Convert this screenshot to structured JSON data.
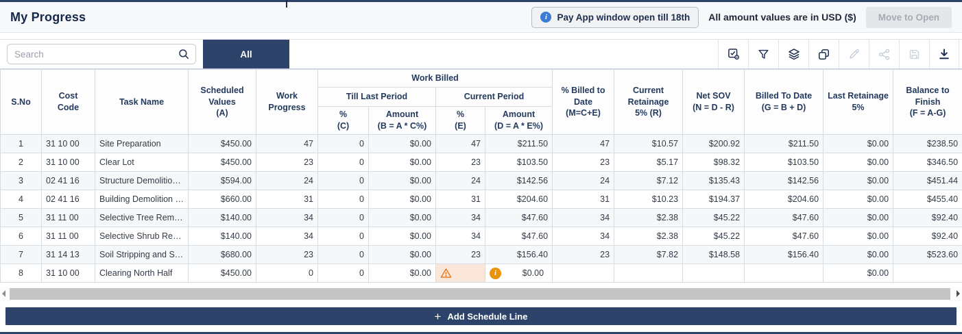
{
  "page": {
    "title": "My Progress",
    "pay_app_notice": "Pay App window open till 18th",
    "currency_note": "All amount values are in USD ($)",
    "move_to_open_label": "Move to Open"
  },
  "toolbar": {
    "search_placeholder": "Search",
    "tab_all_label": "All",
    "icons": [
      {
        "name": "select-view-icon",
        "enabled": true
      },
      {
        "name": "filter-icon",
        "enabled": true
      },
      {
        "name": "layers-icon",
        "enabled": true
      },
      {
        "name": "copy-icon",
        "enabled": true
      },
      {
        "name": "edit-icon",
        "enabled": false
      },
      {
        "name": "share-icon",
        "enabled": false
      },
      {
        "name": "save-icon",
        "enabled": false
      },
      {
        "name": "download-icon",
        "enabled": true
      }
    ],
    "accent_color": "#2e4369",
    "disabled_icon_color": "#c3cdd8"
  },
  "table": {
    "headers": {
      "sno": "S.No",
      "cost_code": "Cost\nCode",
      "task": "Task Name",
      "scheduled": "Scheduled Values\n(A)",
      "progress": "Work\nProgress",
      "work_billed_group": "Work Billed",
      "till_last_period": "Till Last Period",
      "current_period": "Current Period",
      "pct_c": "%\n(C)",
      "amt_b": "Amount\n(B = A * C%)",
      "pct_e": "%\n(E)",
      "amt_d": "Amount\n(D = A * E%)",
      "pct_m": "% Billed to Date\n(M=C+E)",
      "retainage": "Current Retainage\n5% (R)",
      "net_sov": "Net SOV\n(N = D - R)",
      "billed": "Billed To Date\n(G = B + D)",
      "last_ret": "Last Retainage\n5%",
      "balance": "Balance to Finish\n(F = A-G)"
    },
    "rows": [
      {
        "sno": "1",
        "cost_code": "31 10 00",
        "task": "Site Preparation",
        "scheduled": "$450.00",
        "progress": "47",
        "pct_c": "0",
        "amt_b": "$0.00",
        "pct_e": "47",
        "amt_d": "$211.50",
        "pct_m": "47",
        "retainage": "$10.57",
        "net_sov": "$200.92",
        "billed": "$211.50",
        "last_ret": "$0.00",
        "balance": "$238.50"
      },
      {
        "sno": "2",
        "cost_code": "31 10 00",
        "task": "Clear Lot",
        "scheduled": "$450.00",
        "progress": "23",
        "pct_c": "0",
        "amt_b": "$0.00",
        "pct_e": "23",
        "amt_d": "$103.50",
        "pct_m": "23",
        "retainage": "$5.17",
        "net_sov": "$98.32",
        "billed": "$103.50",
        "last_ret": "$0.00",
        "balance": "$346.50"
      },
      {
        "sno": "3",
        "cost_code": "02 41 16",
        "task": "Structure Demolition...",
        "scheduled": "$594.00",
        "progress": "24",
        "pct_c": "0",
        "amt_b": "$0.00",
        "pct_e": "24",
        "amt_d": "$142.56",
        "pct_m": "24",
        "retainage": "$7.12",
        "net_sov": "$135.43",
        "billed": "$142.56",
        "last_ret": "$0.00",
        "balance": "$451.44"
      },
      {
        "sno": "4",
        "cost_code": "02 41 16",
        "task": "Building Demolition - ...",
        "scheduled": "$660.00",
        "progress": "31",
        "pct_c": "0",
        "amt_b": "$0.00",
        "pct_e": "31",
        "amt_d": "$204.60",
        "pct_m": "31",
        "retainage": "$10.23",
        "net_sov": "$194.37",
        "billed": "$204.60",
        "last_ret": "$0.00",
        "balance": "$455.40"
      },
      {
        "sno": "5",
        "cost_code": "31 11 00",
        "task": "Selective Tree Removal",
        "scheduled": "$140.00",
        "progress": "34",
        "pct_c": "0",
        "amt_b": "$0.00",
        "pct_e": "34",
        "amt_d": "$47.60",
        "pct_m": "34",
        "retainage": "$2.38",
        "net_sov": "$45.22",
        "billed": "$47.60",
        "last_ret": "$0.00",
        "balance": "$92.40"
      },
      {
        "sno": "6",
        "cost_code": "31 11 00",
        "task": "Selective Shrub Remo...",
        "scheduled": "$140.00",
        "progress": "34",
        "pct_c": "0",
        "amt_b": "$0.00",
        "pct_e": "34",
        "amt_d": "$47.60",
        "pct_m": "34",
        "retainage": "$2.38",
        "net_sov": "$45.22",
        "billed": "$47.60",
        "last_ret": "$0.00",
        "balance": "$92.40"
      },
      {
        "sno": "7",
        "cost_code": "31 14 13",
        "task": "Soil Stripping and Sto...",
        "scheduled": "$680.00",
        "progress": "23",
        "pct_c": "0",
        "amt_b": "$0.00",
        "pct_e": "23",
        "amt_d": "$156.40",
        "pct_m": "23",
        "retainage": "$7.82",
        "net_sov": "$148.58",
        "billed": "$156.40",
        "last_ret": "$0.00",
        "balance": "$523.60"
      },
      {
        "sno": "8",
        "cost_code": "31 10 00",
        "task": "Clearing North Half",
        "scheduled": "$450.00",
        "progress": "0",
        "pct_c": "0",
        "amt_b": "$0.00",
        "pct_e": "",
        "pct_e_warning": true,
        "amt_d": "$0.00",
        "amt_d_info": true,
        "pct_m": "",
        "retainage": "",
        "net_sov": "",
        "billed": "",
        "last_ret": "$0.00",
        "balance": ""
      }
    ],
    "status_colors": {
      "warning_bg": "#fbe7da",
      "warning_icon": "#e2761f",
      "info_icon": "#e8930c"
    }
  },
  "footer": {
    "add_schedule_line_label": "Add Schedule Line",
    "plus_glyph": "+"
  }
}
